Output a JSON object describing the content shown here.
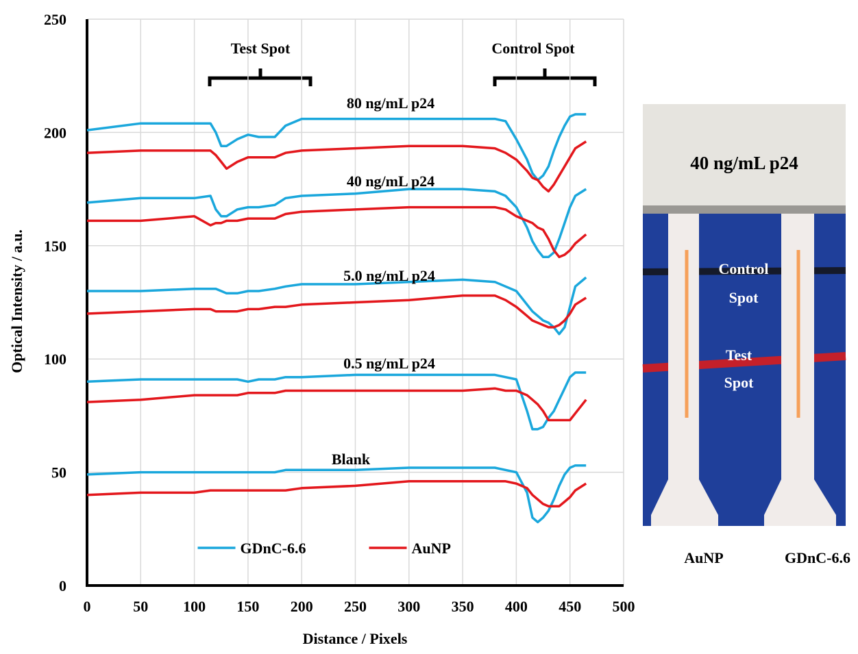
{
  "chart_data": {
    "type": "line",
    "x_label": "Distance / Pixels",
    "y_label": "Optical Intensity / a.u.",
    "xlim": [
      0,
      500
    ],
    "ylim": [
      0,
      250
    ],
    "xticks": [
      0,
      50,
      100,
      150,
      200,
      250,
      300,
      350,
      400,
      450,
      500
    ],
    "yticks": [
      0,
      50,
      100,
      150,
      200,
      250
    ],
    "grid": true,
    "legend": "lower center",
    "annotations": [
      "Test Spot",
      "Control Spot",
      "80 ng/mL p24",
      "40 ng/mL p24",
      "5.0 ng/mL p24",
      "0.5 ng/mL p24",
      "Blank"
    ],
    "x": [
      0,
      50,
      100,
      115,
      120,
      125,
      130,
      140,
      150,
      160,
      175,
      185,
      200,
      250,
      300,
      350,
      380,
      390,
      400,
      410,
      415,
      420,
      425,
      430,
      435,
      440,
      445,
      450,
      455,
      465
    ],
    "series": [
      {
        "name": "GDnC-6.6",
        "color": "#1aa7dc",
        "values": [
          201,
          204,
          204,
          204,
          200,
          194,
          194,
          197,
          199,
          198,
          198,
          203,
          206,
          206,
          206,
          206,
          206,
          205,
          197,
          188,
          182,
          179,
          181,
          185,
          192,
          198,
          203,
          207,
          208,
          208
        ]
      },
      {
        "name": "AuNP",
        "color": "#e3171c",
        "values": [
          191,
          192,
          192,
          192,
          190,
          187,
          184,
          187,
          189,
          189,
          189,
          191,
          192,
          193,
          194,
          194,
          193,
          191,
          188,
          183,
          180,
          179,
          176,
          174,
          177,
          181,
          185,
          189,
          193,
          196
        ]
      },
      {
        "name": "GDnC-6.6",
        "color": "#1aa7dc",
        "values": [
          169,
          171,
          171,
          172,
          166,
          163,
          163,
          166,
          167,
          167,
          168,
          171,
          172,
          173,
          175,
          175,
          174,
          172,
          167,
          158,
          152,
          148,
          145,
          145,
          147,
          153,
          160,
          167,
          172,
          175
        ]
      },
      {
        "name": "AuNP",
        "color": "#e3171c",
        "values": [
          161,
          161,
          163,
          159,
          160,
          160,
          161,
          161,
          162,
          162,
          162,
          164,
          165,
          166,
          167,
          167,
          167,
          166,
          163,
          161,
          160,
          158,
          157,
          153,
          148,
          145,
          146,
          148,
          151,
          155
        ]
      },
      {
        "name": "GDnC-6.6",
        "color": "#1aa7dc",
        "values": [
          130,
          130,
          131,
          131,
          131,
          130,
          129,
          129,
          130,
          130,
          131,
          132,
          133,
          133,
          134,
          135,
          134,
          132,
          130,
          124,
          121,
          119,
          117,
          116,
          114,
          111,
          114,
          123,
          132,
          136
        ]
      },
      {
        "name": "AuNP",
        "color": "#e3171c",
        "values": [
          120,
          121,
          122,
          122,
          121,
          121,
          121,
          121,
          122,
          122,
          123,
          123,
          124,
          125,
          126,
          128,
          128,
          126,
          123,
          119,
          117,
          116,
          115,
          114,
          114,
          115,
          117,
          120,
          124,
          127
        ]
      },
      {
        "name": "GDnC-6.6",
        "color": "#1aa7dc",
        "values": [
          90,
          91,
          91,
          91,
          91,
          91,
          91,
          91,
          90,
          91,
          91,
          92,
          92,
          93,
          93,
          93,
          93,
          92,
          91,
          77,
          69,
          69,
          70,
          74,
          77,
          82,
          87,
          92,
          94,
          94
        ]
      },
      {
        "name": "AuNP",
        "color": "#e3171c",
        "values": [
          81,
          82,
          84,
          84,
          84,
          84,
          84,
          84,
          85,
          85,
          85,
          86,
          86,
          86,
          86,
          86,
          87,
          86,
          86,
          84,
          82,
          80,
          77,
          73,
          73,
          73,
          73,
          73,
          76,
          82
        ]
      },
      {
        "name": "GDnC-6.6",
        "color": "#1aa7dc",
        "values": [
          49,
          50,
          50,
          50,
          50,
          50,
          50,
          50,
          50,
          50,
          50,
          51,
          51,
          51,
          52,
          52,
          52,
          51,
          50,
          41,
          30,
          28,
          30,
          33,
          38,
          44,
          49,
          52,
          53,
          53
        ]
      },
      {
        "name": "AuNP",
        "color": "#e3171c",
        "values": [
          40,
          41,
          41,
          42,
          42,
          42,
          42,
          42,
          42,
          42,
          42,
          42,
          43,
          44,
          46,
          46,
          46,
          46,
          45,
          43,
          40,
          38,
          36,
          35,
          35,
          35,
          37,
          39,
          42,
          45
        ]
      }
    ]
  },
  "photo": {
    "title": "40 ng/mL p24",
    "control_spot": [
      "Control",
      "Spot"
    ],
    "test_spot": [
      "Test",
      "Spot"
    ],
    "strip_labels": [
      "AuNP",
      "GDnC-6.6"
    ]
  }
}
